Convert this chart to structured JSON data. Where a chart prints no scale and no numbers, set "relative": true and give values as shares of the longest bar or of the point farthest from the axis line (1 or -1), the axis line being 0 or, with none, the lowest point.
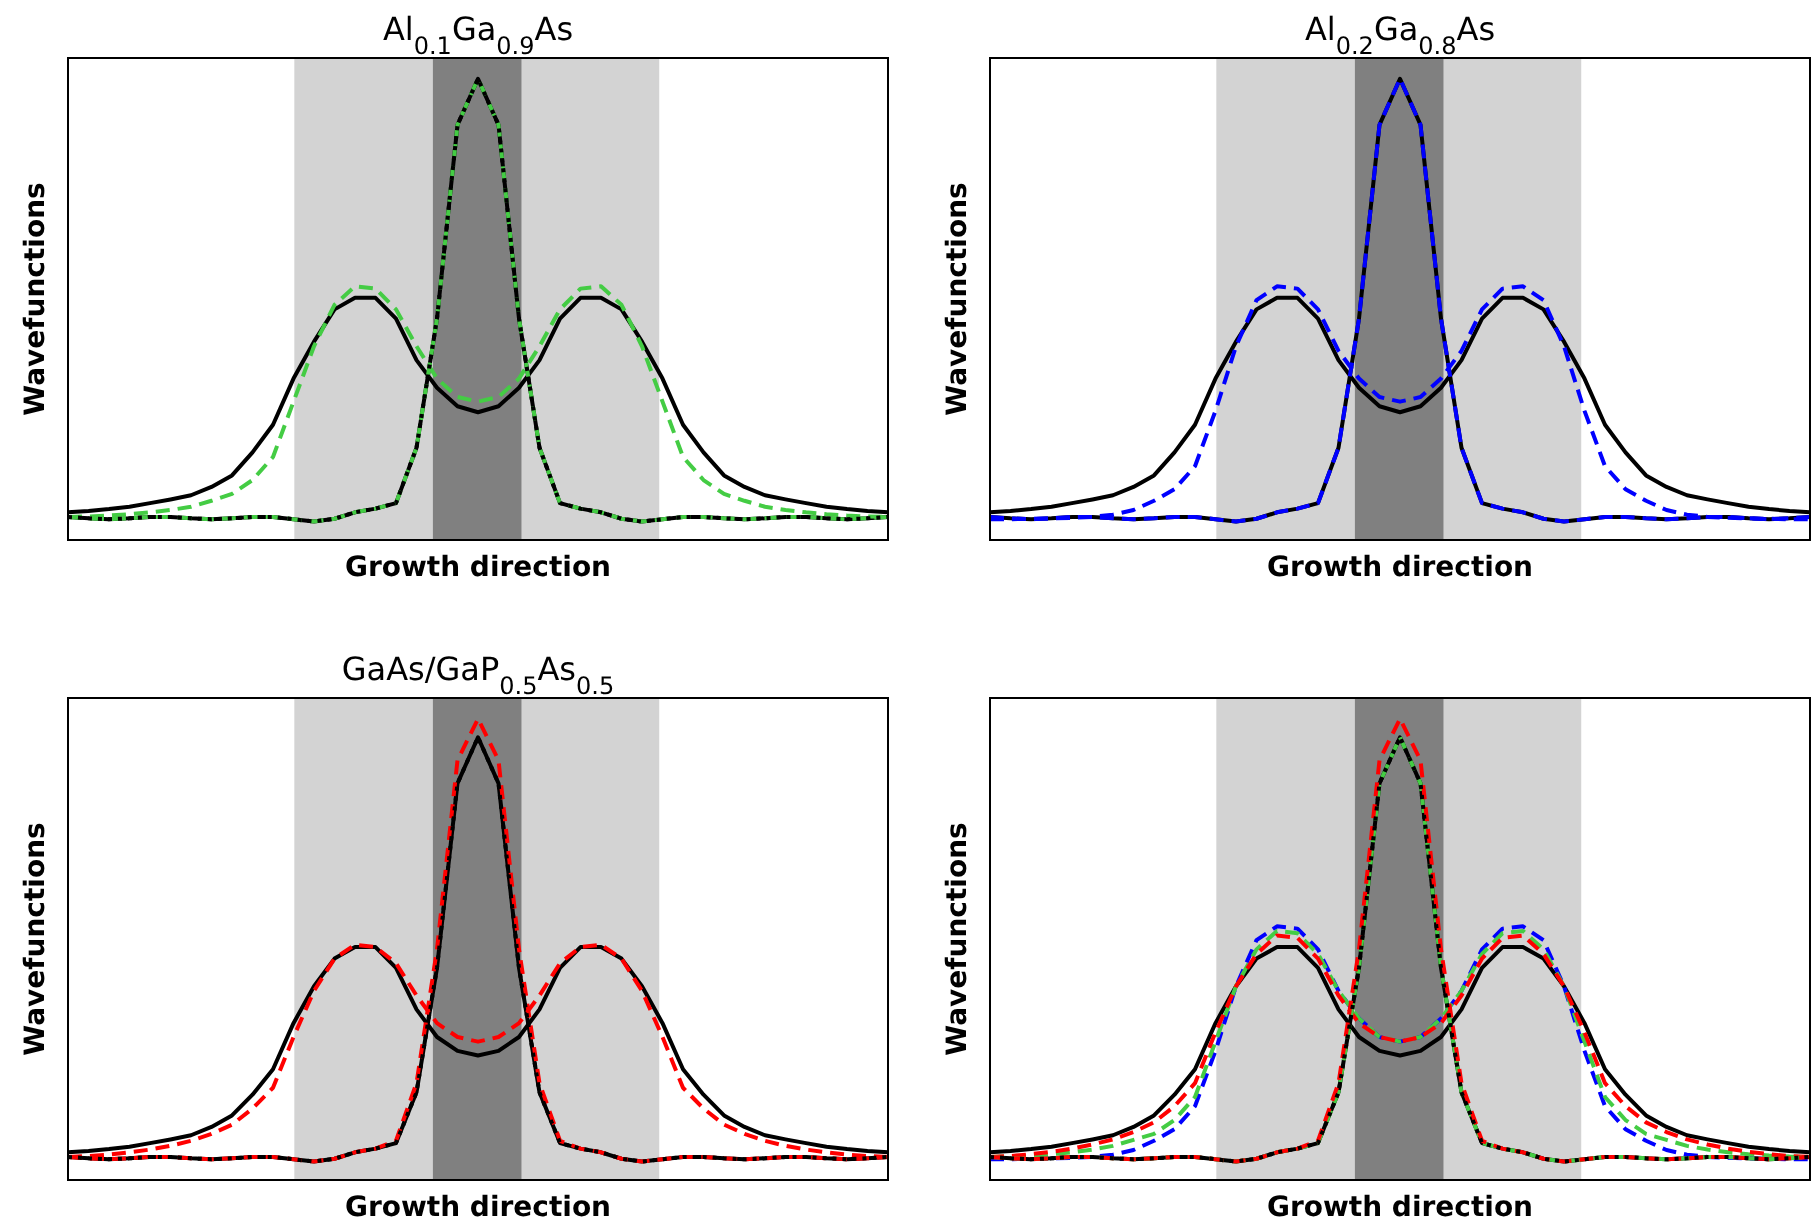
{
  "chart_data": [
    {
      "type": "line",
      "title": "Al$_{0.1}$Ga$_{0.9}$As",
      "xlabel": "Growth direction",
      "ylabel": "Wavefunctions",
      "relative": true,
      "categories": [
        null,
        null,
        null,
        null,
        null,
        null,
        null,
        null,
        null,
        null,
        null,
        null,
        null,
        null,
        null,
        null,
        null,
        null,
        null,
        null,
        null,
        null,
        null,
        null,
        null,
        null,
        null,
        null,
        null,
        null,
        null,
        null,
        null,
        null,
        null,
        null,
        null,
        null,
        null,
        null,
        null
      ],
      "series": [
        {
          "color": "#000000",
          "line_style": "solid",
          "values": [
            0.06,
            0.063,
            0.067,
            0.072,
            0.08,
            0.088,
            0.097,
            0.115,
            0.14,
            0.19,
            0.25,
            0.35,
            0.43,
            0.5,
            0.525,
            0.525,
            0.48,
            0.39,
            0.33,
            0.29,
            0.277,
            0.29,
            0.33,
            0.39,
            0.48,
            0.525,
            0.525,
            0.5,
            0.43,
            0.35,
            0.25,
            0.19,
            0.14,
            0.115,
            0.097,
            0.088,
            0.08,
            0.072,
            0.067,
            0.063,
            0.06
          ]
        },
        {
          "color": "#000000",
          "line_style": "solid",
          "values": [
            0.05,
            0.047,
            0.045,
            0.047,
            0.05,
            0.05,
            0.047,
            0.045,
            0.047,
            0.05,
            0.05,
            0.045,
            0.04,
            0.046,
            0.06,
            0.068,
            0.08,
            0.2,
            0.48,
            0.9,
            1.0,
            0.9,
            0.48,
            0.2,
            0.08,
            0.068,
            0.06,
            0.046,
            0.04,
            0.045,
            0.05,
            0.05,
            0.047,
            0.045,
            0.047,
            0.05,
            0.05,
            0.047,
            0.045,
            0.047,
            0.05
          ]
        },
        {
          "color": "#44cc44",
          "line_style": "dashed",
          "values": [
            0.05,
            0.051,
            0.053,
            0.056,
            0.06,
            0.065,
            0.072,
            0.085,
            0.1,
            0.13,
            0.18,
            0.3,
            0.42,
            0.51,
            0.55,
            0.545,
            0.5,
            0.42,
            0.35,
            0.31,
            0.3,
            0.31,
            0.35,
            0.42,
            0.5,
            0.545,
            0.55,
            0.51,
            0.42,
            0.3,
            0.18,
            0.13,
            0.1,
            0.085,
            0.072,
            0.065,
            0.06,
            0.056,
            0.053,
            0.051,
            0.05
          ]
        },
        {
          "color": "#44cc44",
          "line_style": "dashed",
          "values": [
            0.05,
            0.047,
            0.045,
            0.047,
            0.05,
            0.05,
            0.047,
            0.045,
            0.047,
            0.05,
            0.05,
            0.045,
            0.04,
            0.046,
            0.06,
            0.068,
            0.08,
            0.2,
            0.48,
            0.9,
            1.0,
            0.9,
            0.48,
            0.2,
            0.08,
            0.068,
            0.06,
            0.046,
            0.04,
            0.045,
            0.05,
            0.05,
            0.047,
            0.045,
            0.047,
            0.05,
            0.05,
            0.047,
            0.045,
            0.047,
            0.05
          ]
        },
        {
          "color": "#000000",
          "line_style": "dotted",
          "values": [
            0.05,
            0.047,
            0.045,
            0.047,
            0.05,
            0.05,
            0.047,
            0.045,
            0.047,
            0.05,
            0.05,
            0.045,
            0.04,
            0.046,
            0.06,
            0.068,
            0.08,
            0.2,
            0.48,
            0.9,
            1.0,
            0.9,
            0.48,
            0.2,
            0.08,
            0.068,
            0.06,
            0.046,
            0.04,
            0.045,
            0.05,
            0.05,
            0.047,
            0.045,
            0.047,
            0.05,
            0.05,
            0.047,
            0.045,
            0.047,
            0.05
          ]
        }
      ]
    },
    {
      "type": "line",
      "title": "Al$_{0.2}$Ga$_{0.8}$As",
      "xlabel": "Growth direction",
      "ylabel": "Wavefunctions",
      "relative": true,
      "categories": [
        null,
        null,
        null,
        null,
        null,
        null,
        null,
        null,
        null,
        null,
        null,
        null,
        null,
        null,
        null,
        null,
        null,
        null,
        null,
        null,
        null,
        null,
        null,
        null,
        null,
        null,
        null,
        null,
        null,
        null,
        null,
        null,
        null,
        null,
        null,
        null,
        null,
        null,
        null,
        null,
        null
      ],
      "series": [
        {
          "color": "#000000",
          "line_style": "solid",
          "values": [
            0.06,
            0.063,
            0.067,
            0.072,
            0.08,
            0.088,
            0.097,
            0.115,
            0.14,
            0.19,
            0.25,
            0.35,
            0.43,
            0.5,
            0.525,
            0.525,
            0.48,
            0.39,
            0.33,
            0.29,
            0.277,
            0.29,
            0.33,
            0.39,
            0.48,
            0.525,
            0.525,
            0.5,
            0.43,
            0.35,
            0.25,
            0.19,
            0.14,
            0.115,
            0.097,
            0.088,
            0.08,
            0.072,
            0.067,
            0.063,
            0.06
          ]
        },
        {
          "color": "#000000",
          "line_style": "solid",
          "values": [
            0.05,
            0.047,
            0.045,
            0.047,
            0.05,
            0.05,
            0.047,
            0.045,
            0.047,
            0.05,
            0.05,
            0.045,
            0.04,
            0.046,
            0.06,
            0.068,
            0.08,
            0.2,
            0.48,
            0.9,
            1.0,
            0.9,
            0.48,
            0.2,
            0.08,
            0.068,
            0.06,
            0.046,
            0.04,
            0.045,
            0.05,
            0.05,
            0.047,
            0.045,
            0.047,
            0.05,
            0.05,
            0.047,
            0.045,
            0.047,
            0.05
          ]
        },
        {
          "color": "#0000ff",
          "line_style": "dashed",
          "values": [
            0.045,
            0.045,
            0.046,
            0.047,
            0.048,
            0.05,
            0.055,
            0.065,
            0.085,
            0.11,
            0.16,
            0.28,
            0.42,
            0.52,
            0.55,
            0.545,
            0.5,
            0.41,
            0.35,
            0.31,
            0.3,
            0.31,
            0.35,
            0.41,
            0.5,
            0.545,
            0.55,
            0.52,
            0.42,
            0.28,
            0.16,
            0.11,
            0.085,
            0.065,
            0.055,
            0.05,
            0.048,
            0.047,
            0.046,
            0.045,
            0.045
          ]
        },
        {
          "color": "#0000ff",
          "line_style": "dashed",
          "values": [
            0.05,
            0.047,
            0.045,
            0.047,
            0.05,
            0.05,
            0.047,
            0.045,
            0.047,
            0.05,
            0.05,
            0.045,
            0.04,
            0.046,
            0.06,
            0.068,
            0.08,
            0.2,
            0.48,
            0.9,
            1.0,
            0.9,
            0.48,
            0.2,
            0.08,
            0.068,
            0.06,
            0.046,
            0.04,
            0.045,
            0.05,
            0.05,
            0.047,
            0.045,
            0.047,
            0.05,
            0.05,
            0.047,
            0.045,
            0.047,
            0.05
          ]
        }
      ]
    },
    {
      "type": "line",
      "title": "GaAs/GaP$_{0.5}$As$_{0.5}$",
      "xlabel": "Growth direction",
      "ylabel": "Wavefunctions",
      "relative": true,
      "categories": [
        null,
        null,
        null,
        null,
        null,
        null,
        null,
        null,
        null,
        null,
        null,
        null,
        null,
        null,
        null,
        null,
        null,
        null,
        null,
        null,
        null,
        null,
        null,
        null,
        null,
        null,
        null,
        null,
        null,
        null,
        null,
        null,
        null,
        null,
        null,
        null,
        null,
        null,
        null,
        null,
        null
      ],
      "series": [
        {
          "color": "#000000",
          "line_style": "solid",
          "values": [
            0.06,
            0.063,
            0.067,
            0.072,
            0.08,
            0.088,
            0.097,
            0.115,
            0.14,
            0.185,
            0.24,
            0.34,
            0.42,
            0.48,
            0.505,
            0.505,
            0.46,
            0.37,
            0.31,
            0.28,
            0.27,
            0.28,
            0.31,
            0.37,
            0.46,
            0.505,
            0.505,
            0.48,
            0.42,
            0.34,
            0.24,
            0.185,
            0.14,
            0.115,
            0.097,
            0.088,
            0.08,
            0.072,
            0.067,
            0.063,
            0.06
          ]
        },
        {
          "color": "#000000",
          "line_style": "solid",
          "values": [
            0.05,
            0.047,
            0.045,
            0.047,
            0.05,
            0.05,
            0.047,
            0.045,
            0.047,
            0.05,
            0.05,
            0.045,
            0.04,
            0.046,
            0.06,
            0.068,
            0.08,
            0.19,
            0.46,
            0.86,
            0.96,
            0.86,
            0.46,
            0.19,
            0.08,
            0.068,
            0.06,
            0.046,
            0.04,
            0.045,
            0.05,
            0.05,
            0.047,
            0.045,
            0.047,
            0.05,
            0.05,
            0.047,
            0.045,
            0.047,
            0.05
          ]
        },
        {
          "color": "#ff0000",
          "line_style": "dashed",
          "values": [
            0.05,
            0.052,
            0.055,
            0.06,
            0.066,
            0.074,
            0.085,
            0.1,
            0.12,
            0.155,
            0.2,
            0.31,
            0.41,
            0.48,
            0.51,
            0.505,
            0.47,
            0.4,
            0.34,
            0.31,
            0.3,
            0.31,
            0.34,
            0.4,
            0.47,
            0.505,
            0.51,
            0.48,
            0.41,
            0.31,
            0.2,
            0.155,
            0.12,
            0.1,
            0.085,
            0.074,
            0.066,
            0.06,
            0.055,
            0.052,
            0.05
          ]
        },
        {
          "color": "#ff0000",
          "line_style": "dashed",
          "values": [
            0.05,
            0.047,
            0.045,
            0.047,
            0.05,
            0.05,
            0.047,
            0.045,
            0.047,
            0.05,
            0.05,
            0.045,
            0.04,
            0.046,
            0.06,
            0.068,
            0.085,
            0.21,
            0.5,
            0.91,
            1.0,
            0.91,
            0.5,
            0.21,
            0.085,
            0.068,
            0.06,
            0.046,
            0.04,
            0.045,
            0.05,
            0.05,
            0.047,
            0.045,
            0.047,
            0.05,
            0.05,
            0.047,
            0.045,
            0.047,
            0.05
          ]
        },
        {
          "color": "#000000",
          "line_style": "dotted",
          "values": [
            0.05,
            0.047,
            0.045,
            0.047,
            0.05,
            0.05,
            0.047,
            0.045,
            0.047,
            0.05,
            0.05,
            0.045,
            0.04,
            0.046,
            0.06,
            0.068,
            0.08,
            0.19,
            0.46,
            0.86,
            0.96,
            0.86,
            0.46,
            0.19,
            0.08,
            0.068,
            0.06,
            0.046,
            0.04,
            0.045,
            0.05,
            0.05,
            0.047,
            0.045,
            0.047,
            0.05,
            0.05,
            0.047,
            0.045,
            0.047,
            0.05
          ]
        }
      ]
    },
    {
      "type": "line",
      "xlabel": "Growth direction",
      "ylabel": "Wavefunctions",
      "relative": true,
      "categories": [
        null,
        null,
        null,
        null,
        null,
        null,
        null,
        null,
        null,
        null,
        null,
        null,
        null,
        null,
        null,
        null,
        null,
        null,
        null,
        null,
        null,
        null,
        null,
        null,
        null,
        null,
        null,
        null,
        null,
        null,
        null,
        null,
        null,
        null,
        null,
        null,
        null,
        null,
        null,
        null,
        null
      ],
      "series": [
        {
          "color": "#000000",
          "line_style": "solid",
          "values": [
            0.06,
            0.063,
            0.067,
            0.072,
            0.08,
            0.088,
            0.097,
            0.115,
            0.14,
            0.185,
            0.24,
            0.34,
            0.42,
            0.48,
            0.505,
            0.505,
            0.46,
            0.37,
            0.31,
            0.28,
            0.27,
            0.28,
            0.31,
            0.37,
            0.46,
            0.505,
            0.505,
            0.48,
            0.42,
            0.34,
            0.24,
            0.185,
            0.14,
            0.115,
            0.097,
            0.088,
            0.08,
            0.072,
            0.067,
            0.063,
            0.06
          ]
        },
        {
          "color": "#000000",
          "line_style": "solid",
          "values": [
            0.05,
            0.047,
            0.045,
            0.047,
            0.05,
            0.05,
            0.047,
            0.045,
            0.047,
            0.05,
            0.05,
            0.045,
            0.04,
            0.046,
            0.06,
            0.068,
            0.08,
            0.19,
            0.46,
            0.86,
            0.96,
            0.86,
            0.46,
            0.19,
            0.08,
            0.068,
            0.06,
            0.046,
            0.04,
            0.045,
            0.05,
            0.05,
            0.047,
            0.045,
            0.047,
            0.05,
            0.05,
            0.047,
            0.045,
            0.047,
            0.05
          ]
        },
        {
          "color": "#0000ff",
          "line_style": "dashed",
          "values": [
            0.045,
            0.045,
            0.046,
            0.047,
            0.048,
            0.05,
            0.055,
            0.065,
            0.085,
            0.11,
            0.16,
            0.28,
            0.42,
            0.52,
            0.55,
            0.545,
            0.5,
            0.41,
            0.35,
            0.31,
            0.3,
            0.31,
            0.35,
            0.41,
            0.5,
            0.545,
            0.55,
            0.52,
            0.42,
            0.28,
            0.16,
            0.11,
            0.085,
            0.065,
            0.055,
            0.05,
            0.048,
            0.047,
            0.046,
            0.045,
            0.045
          ]
        },
        {
          "color": "#44cc44",
          "line_style": "dashed",
          "values": [
            0.05,
            0.051,
            0.053,
            0.056,
            0.06,
            0.066,
            0.074,
            0.087,
            0.1,
            0.13,
            0.18,
            0.3,
            0.42,
            0.5,
            0.54,
            0.535,
            0.49,
            0.41,
            0.35,
            0.31,
            0.3,
            0.31,
            0.35,
            0.41,
            0.49,
            0.535,
            0.54,
            0.5,
            0.42,
            0.3,
            0.18,
            0.13,
            0.1,
            0.087,
            0.074,
            0.066,
            0.06,
            0.056,
            0.053,
            0.051,
            0.05
          ]
        },
        {
          "color": "#ff0000",
          "line_style": "dashed",
          "values": [
            0.05,
            0.052,
            0.056,
            0.061,
            0.068,
            0.077,
            0.088,
            0.104,
            0.125,
            0.16,
            0.21,
            0.32,
            0.42,
            0.49,
            0.53,
            0.525,
            0.48,
            0.4,
            0.34,
            0.31,
            0.3,
            0.31,
            0.34,
            0.4,
            0.48,
            0.525,
            0.53,
            0.49,
            0.42,
            0.32,
            0.21,
            0.16,
            0.125,
            0.104,
            0.088,
            0.077,
            0.068,
            0.061,
            0.056,
            0.052,
            0.05
          ]
        },
        {
          "color": "#44cc44",
          "line_style": "dashed",
          "values": [
            0.05,
            0.047,
            0.045,
            0.047,
            0.05,
            0.05,
            0.047,
            0.045,
            0.047,
            0.05,
            0.05,
            0.045,
            0.04,
            0.046,
            0.06,
            0.068,
            0.08,
            0.19,
            0.46,
            0.86,
            0.96,
            0.86,
            0.46,
            0.19,
            0.08,
            0.068,
            0.06,
            0.046,
            0.04,
            0.045,
            0.05,
            0.05,
            0.047,
            0.045,
            0.047,
            0.05,
            0.05,
            0.047,
            0.045,
            0.047,
            0.05
          ]
        },
        {
          "color": "#ff0000",
          "line_style": "dashed",
          "values": [
            0.05,
            0.047,
            0.045,
            0.047,
            0.05,
            0.05,
            0.047,
            0.045,
            0.047,
            0.05,
            0.05,
            0.045,
            0.04,
            0.046,
            0.06,
            0.068,
            0.085,
            0.21,
            0.5,
            0.91,
            1.0,
            0.91,
            0.5,
            0.21,
            0.085,
            0.068,
            0.06,
            0.046,
            0.04,
            0.045,
            0.05,
            0.05,
            0.047,
            0.045,
            0.047,
            0.05,
            0.05,
            0.047,
            0.045,
            0.047,
            0.05
          ]
        },
        {
          "color": "#000000",
          "line_style": "dotted",
          "values": [
            0.05,
            0.047,
            0.045,
            0.047,
            0.05,
            0.05,
            0.047,
            0.045,
            0.047,
            0.05,
            0.05,
            0.045,
            0.04,
            0.046,
            0.06,
            0.068,
            0.08,
            0.19,
            0.46,
            0.86,
            0.96,
            0.86,
            0.46,
            0.19,
            0.08,
            0.068,
            0.06,
            0.046,
            0.04,
            0.045,
            0.05,
            0.05,
            0.047,
            0.045,
            0.047,
            0.05,
            0.05,
            0.047,
            0.045,
            0.047,
            0.05
          ]
        }
      ]
    }
  ]
}
